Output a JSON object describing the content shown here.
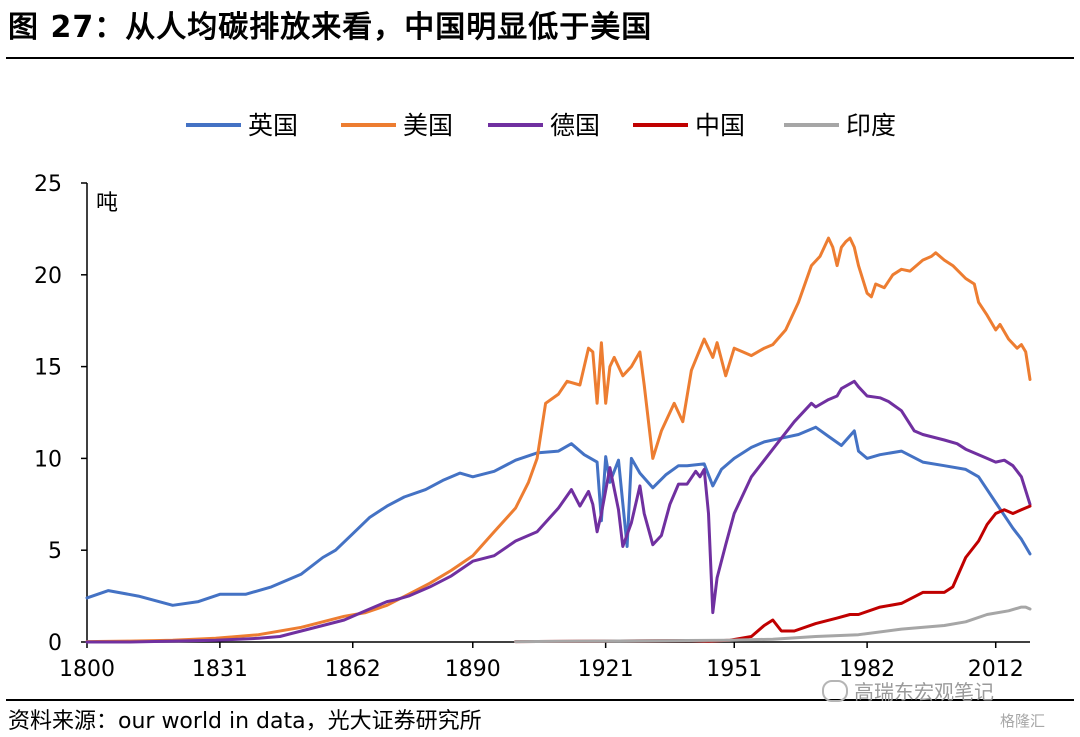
{
  "header": {
    "title": "图 27：从人均碳排放来看，中国明显低于美国"
  },
  "footer": {
    "source": "资料来源：our world in data，光大证券研究所",
    "watermark": "高瑞东宏观笔记",
    "watermark2": "格隆汇"
  },
  "chart_data": {
    "type": "line",
    "ylabel": "吨",
    "xlim": [
      1800,
      2020
    ],
    "ylim": [
      0,
      25
    ],
    "x_ticks": [
      1800,
      1831,
      1862,
      1890,
      1921,
      1951,
      1982,
      2012
    ],
    "y_ticks": [
      0,
      5,
      10,
      15,
      20,
      25
    ],
    "legend_position": "top",
    "series": [
      {
        "name": "英国",
        "color": "#4472c4",
        "x": [
          1800,
          1805,
          1812,
          1820,
          1826,
          1831,
          1837,
          1843,
          1850,
          1855,
          1858,
          1862,
          1866,
          1870,
          1874,
          1879,
          1883,
          1887,
          1890,
          1895,
          1900,
          1905,
          1910,
          1913,
          1916,
          1919,
          1920,
          1921,
          1922,
          1924,
          1926,
          1927,
          1929,
          1932,
          1935,
          1938,
          1940,
          1944,
          1946,
          1948,
          1951,
          1955,
          1958,
          1962,
          1966,
          1970,
          1973,
          1976,
          1979,
          1980,
          1982,
          1985,
          1990,
          1995,
          2000,
          2005,
          2008,
          2010,
          2012,
          2014,
          2016,
          2018,
          2020
        ],
        "y": [
          2.4,
          2.8,
          2.5,
          2.0,
          2.2,
          2.6,
          2.6,
          3.0,
          3.7,
          4.6,
          5.0,
          5.9,
          6.8,
          7.4,
          7.9,
          8.3,
          8.8,
          9.2,
          9.0,
          9.3,
          9.9,
          10.3,
          10.4,
          10.8,
          10.2,
          9.8,
          6.6,
          10.1,
          8.7,
          9.9,
          5.2,
          10.0,
          9.2,
          8.4,
          9.1,
          9.6,
          9.6,
          9.7,
          8.5,
          9.4,
          10.0,
          10.6,
          10.9,
          11.1,
          11.3,
          11.7,
          11.2,
          10.7,
          11.5,
          10.4,
          10.0,
          10.2,
          10.4,
          9.8,
          9.6,
          9.4,
          9.0,
          8.3,
          7.6,
          6.9,
          6.2,
          5.6,
          4.8
        ]
      },
      {
        "name": "美国",
        "color": "#ed7d31",
        "x": [
          1800,
          1810,
          1820,
          1830,
          1840,
          1850,
          1855,
          1860,
          1865,
          1870,
          1875,
          1880,
          1885,
          1890,
          1895,
          1900,
          1903,
          1905,
          1907,
          1910,
          1912,
          1915,
          1917,
          1918,
          1919,
          1920,
          1921,
          1922,
          1923,
          1925,
          1927,
          1929,
          1930,
          1932,
          1934,
          1937,
          1939,
          1941,
          1944,
          1945,
          1946,
          1947,
          1949,
          1951,
          1953,
          1955,
          1958,
          1960,
          1963,
          1966,
          1969,
          1971,
          1973,
          1974,
          1975,
          1976,
          1977,
          1978,
          1979,
          1980,
          1982,
          1983,
          1984,
          1986,
          1988,
          1990,
          1992,
          1995,
          1997,
          1998,
          2000,
          2002,
          2005,
          2007,
          2008,
          2010,
          2012,
          2013,
          2015,
          2017,
          2018,
          2019,
          2020
        ],
        "y": [
          0.02,
          0.05,
          0.1,
          0.2,
          0.4,
          0.8,
          1.1,
          1.4,
          1.6,
          2.0,
          2.6,
          3.2,
          3.9,
          4.7,
          6.0,
          7.3,
          8.7,
          10.0,
          13.0,
          13.5,
          14.2,
          14.0,
          16.0,
          15.8,
          13.0,
          16.3,
          13.0,
          15.0,
          15.5,
          14.5,
          15.0,
          15.8,
          14.0,
          10.0,
          11.5,
          13.0,
          12.0,
          14.8,
          16.5,
          16.0,
          15.5,
          16.3,
          14.5,
          16.0,
          15.8,
          15.6,
          16.0,
          16.2,
          17.0,
          18.5,
          20.5,
          21.0,
          22.0,
          21.5,
          20.5,
          21.5,
          21.8,
          22.0,
          21.5,
          20.5,
          19.0,
          18.8,
          19.5,
          19.3,
          20.0,
          20.3,
          20.2,
          20.8,
          21.0,
          21.2,
          20.8,
          20.5,
          19.8,
          19.5,
          18.5,
          17.8,
          17.0,
          17.3,
          16.5,
          16.0,
          16.2,
          15.8,
          14.3
        ]
      },
      {
        "name": "德国",
        "color": "#7030a0",
        "x": [
          1800,
          1810,
          1820,
          1830,
          1840,
          1845,
          1850,
          1855,
          1860,
          1865,
          1870,
          1872,
          1875,
          1880,
          1885,
          1890,
          1895,
          1900,
          1905,
          1910,
          1913,
          1915,
          1917,
          1918,
          1919,
          1920,
          1922,
          1924,
          1925,
          1927,
          1929,
          1930,
          1932,
          1934,
          1936,
          1938,
          1940,
          1942,
          1943,
          1944,
          1945,
          1946,
          1947,
          1949,
          1951,
          1955,
          1960,
          1965,
          1969,
          1970,
          1973,
          1975,
          1976,
          1979,
          1980,
          1982,
          1985,
          1987,
          1990,
          1993,
          1995,
          2000,
          2003,
          2005,
          2008,
          2010,
          2012,
          2014,
          2016,
          2018,
          2020
        ],
        "y": [
          0,
          0,
          0.05,
          0.1,
          0.2,
          0.3,
          0.6,
          0.9,
          1.2,
          1.7,
          2.2,
          2.3,
          2.5,
          3.0,
          3.6,
          4.4,
          4.7,
          5.5,
          6.0,
          7.3,
          8.3,
          7.4,
          8.2,
          7.5,
          6.0,
          7.0,
          9.5,
          7.2,
          5.2,
          6.5,
          8.5,
          7.0,
          5.3,
          5.8,
          7.5,
          8.6,
          8.6,
          9.3,
          9.0,
          9.4,
          7.0,
          1.6,
          3.5,
          5.3,
          7.0,
          9.0,
          10.5,
          12.0,
          13.0,
          12.8,
          13.2,
          13.4,
          13.8,
          14.2,
          13.9,
          13.4,
          13.3,
          13.1,
          12.6,
          11.5,
          11.3,
          11.0,
          10.8,
          10.5,
          10.2,
          10.0,
          9.8,
          9.9,
          9.6,
          9.0,
          7.5
        ]
      },
      {
        "name": "中国",
        "color": "#c00000",
        "x": [
          1900,
          1920,
          1940,
          1945,
          1950,
          1955,
          1958,
          1960,
          1962,
          1965,
          1970,
          1975,
          1978,
          1980,
          1985,
          1990,
          1995,
          2000,
          2002,
          2005,
          2008,
          2010,
          2012,
          2014,
          2016,
          2018,
          2020
        ],
        "y": [
          0.02,
          0.05,
          0.08,
          0.05,
          0.1,
          0.3,
          0.9,
          1.2,
          0.6,
          0.6,
          1.0,
          1.3,
          1.5,
          1.5,
          1.9,
          2.1,
          2.7,
          2.7,
          3.0,
          4.6,
          5.5,
          6.4,
          7.0,
          7.2,
          7.0,
          7.2,
          7.4
        ]
      },
      {
        "name": "印度",
        "color": "#a6a6a6",
        "x": [
          1900,
          1920,
          1940,
          1950,
          1960,
          1970,
          1980,
          1990,
          2000,
          2005,
          2010,
          2015,
          2018,
          2019,
          2020
        ],
        "y": [
          0.02,
          0.05,
          0.08,
          0.1,
          0.15,
          0.3,
          0.4,
          0.7,
          0.9,
          1.1,
          1.5,
          1.7,
          1.9,
          1.9,
          1.8
        ]
      }
    ]
  }
}
